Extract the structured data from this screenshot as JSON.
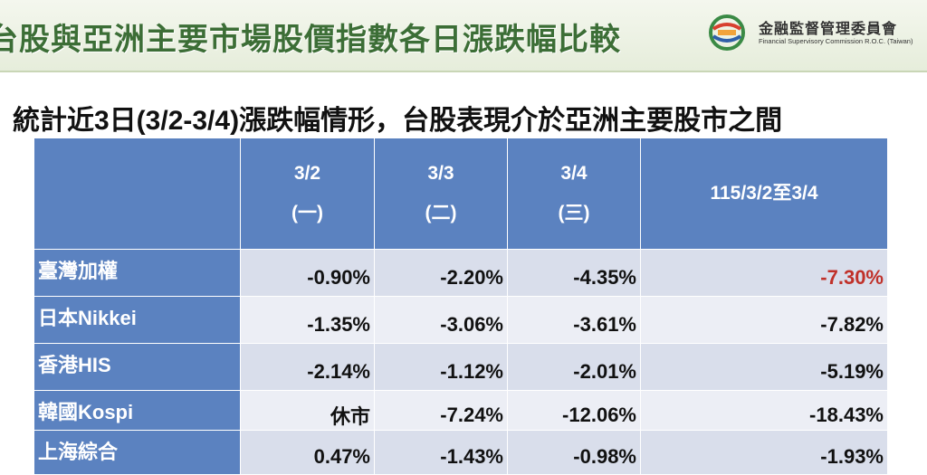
{
  "header": {
    "title": "台股與亞洲主要市場股價指數各日漲跌幅比較",
    "logo_name": "金融監督管理委員會",
    "logo_english": "Financial Supervisory Commission R.O.C. (Taiwan)"
  },
  "subtitle": "統計近3日(3/2-3/4)漲跌幅情形，台股表現介於亞洲主要股市之間",
  "table": {
    "columns": [
      {
        "date": "3/2",
        "weekday": "(一)"
      },
      {
        "date": "3/3",
        "weekday": "(二)"
      },
      {
        "date": "3/4",
        "weekday": "(三)"
      },
      {
        "date": "115/3/2至3/4"
      }
    ],
    "rows": [
      [
        "臺灣加權",
        "-0.90%",
        "-2.20%",
        "-4.35%",
        "-7.30%"
      ],
      [
        "日本Nikkei",
        "-1.35%",
        "-3.06%",
        "-3.61%",
        "-7.82%"
      ],
      [
        "香港HIS",
        "-2.14%",
        "-1.12%",
        "-2.01%",
        "-5.19%"
      ],
      [
        "韓國Kospi",
        "休市",
        "-7.24%",
        "-12.06%",
        "-18.43%"
      ],
      [
        "上海綜合",
        "0.47%",
        "-1.43%",
        "-0.98%",
        "-1.93%"
      ]
    ]
  }
}
